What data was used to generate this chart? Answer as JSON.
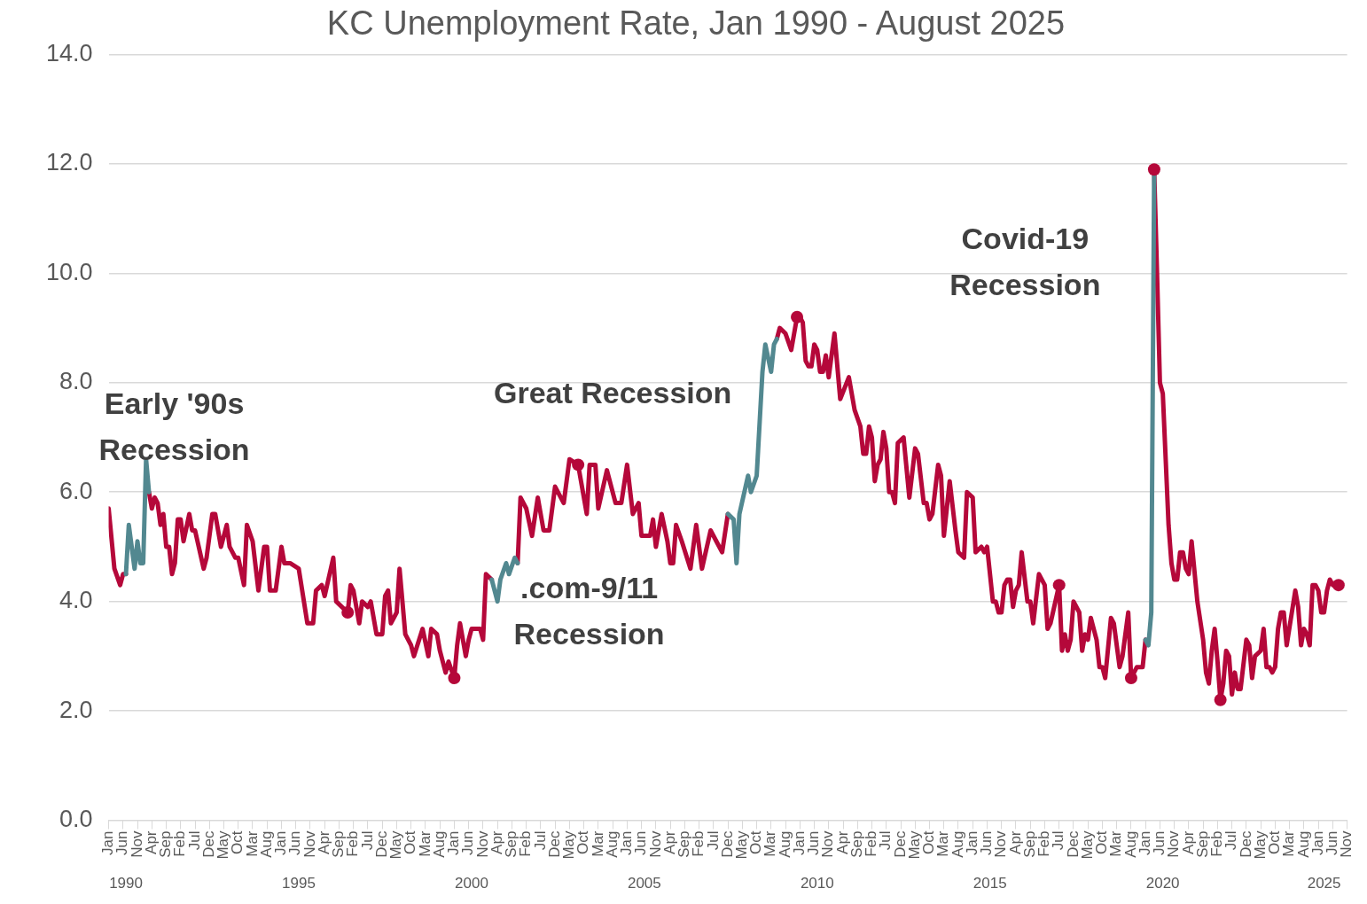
{
  "chart_data": {
    "type": "line",
    "title": "KC Unemployment Rate, Jan 1990 - August 2025",
    "xlim": [
      "1990-01",
      "2025-11"
    ],
    "xticks": [
      {
        "value": "1990-01",
        "label": "Jan"
      },
      {
        "value": "1990-06",
        "label": "Jun"
      },
      {
        "value": "1990-11",
        "label": "Nov"
      },
      {
        "value": "1991-04",
        "label": "Apr"
      },
      {
        "value": "1991-09",
        "label": "Sep"
      },
      {
        "value": "1992-02",
        "label": "Feb"
      },
      {
        "value": "1992-07",
        "label": "Jul"
      },
      {
        "value": "1992-12",
        "label": "Dec"
      },
      {
        "value": "1993-05",
        "label": "May"
      },
      {
        "value": "1993-10",
        "label": "Oct"
      },
      {
        "value": "1994-03",
        "label": "Mar"
      },
      {
        "value": "1994-08",
        "label": "Aug"
      },
      {
        "value": "1995-01",
        "label": "Jan"
      },
      {
        "value": "1995-06",
        "label": "Jun"
      },
      {
        "value": "1995-11",
        "label": "Nov"
      },
      {
        "value": "1996-04",
        "label": "Apr"
      },
      {
        "value": "1996-09",
        "label": "Sep"
      },
      {
        "value": "1997-02",
        "label": "Feb"
      },
      {
        "value": "1997-07",
        "label": "Jul"
      },
      {
        "value": "1997-12",
        "label": "Dec"
      },
      {
        "value": "1998-05",
        "label": "May"
      },
      {
        "value": "1998-10",
        "label": "Oct"
      },
      {
        "value": "1999-03",
        "label": "Mar"
      },
      {
        "value": "1999-08",
        "label": "Aug"
      },
      {
        "value": "2000-01",
        "label": "Jan"
      },
      {
        "value": "2000-06",
        "label": "Jun"
      },
      {
        "value": "2000-11",
        "label": "Nov"
      },
      {
        "value": "2001-04",
        "label": "Apr"
      },
      {
        "value": "2001-09",
        "label": "Sep"
      },
      {
        "value": "2002-02",
        "label": "Feb"
      },
      {
        "value": "2002-07",
        "label": "Jul"
      },
      {
        "value": "2002-12",
        "label": "Dec"
      },
      {
        "value": "2003-05",
        "label": "May"
      },
      {
        "value": "2003-10",
        "label": "Oct"
      },
      {
        "value": "2004-03",
        "label": "Mar"
      },
      {
        "value": "2004-08",
        "label": "Aug"
      },
      {
        "value": "2005-01",
        "label": "Jan"
      },
      {
        "value": "2005-06",
        "label": "Jun"
      },
      {
        "value": "2005-11",
        "label": "Nov"
      },
      {
        "value": "2006-04",
        "label": "Apr"
      },
      {
        "value": "2006-09",
        "label": "Sep"
      },
      {
        "value": "2007-02",
        "label": "Feb"
      },
      {
        "value": "2007-07",
        "label": "Jul"
      },
      {
        "value": "2007-12",
        "label": "Dec"
      },
      {
        "value": "2008-05",
        "label": "May"
      },
      {
        "value": "2008-10",
        "label": "Oct"
      },
      {
        "value": "2009-03",
        "label": "Mar"
      },
      {
        "value": "2009-08",
        "label": "Aug"
      },
      {
        "value": "2010-01",
        "label": "Jan"
      },
      {
        "value": "2010-06",
        "label": "Jun"
      },
      {
        "value": "2010-11",
        "label": "Nov"
      },
      {
        "value": "2011-04",
        "label": "Apr"
      },
      {
        "value": "2011-09",
        "label": "Sep"
      },
      {
        "value": "2012-02",
        "label": "Feb"
      },
      {
        "value": "2012-07",
        "label": "Jul"
      },
      {
        "value": "2012-12",
        "label": "Dec"
      },
      {
        "value": "2013-05",
        "label": "May"
      },
      {
        "value": "2013-10",
        "label": "Oct"
      },
      {
        "value": "2014-03",
        "label": "Mar"
      },
      {
        "value": "2014-08",
        "label": "Aug"
      },
      {
        "value": "2015-01",
        "label": "Jan"
      },
      {
        "value": "2015-06",
        "label": "Jun"
      },
      {
        "value": "2015-11",
        "label": "Nov"
      },
      {
        "value": "2016-04",
        "label": "Apr"
      },
      {
        "value": "2016-09",
        "label": "Sep"
      },
      {
        "value": "2017-02",
        "label": "Feb"
      },
      {
        "value": "2017-07",
        "label": "Jul"
      },
      {
        "value": "2017-12",
        "label": "Dec"
      },
      {
        "value": "2018-05",
        "label": "May"
      },
      {
        "value": "2018-10",
        "label": "Oct"
      },
      {
        "value": "2019-03",
        "label": "Mar"
      },
      {
        "value": "2019-08",
        "label": "Aug"
      },
      {
        "value": "2020-01",
        "label": "Jan"
      },
      {
        "value": "2020-06",
        "label": "Jun"
      },
      {
        "value": "2020-11",
        "label": "Nov"
      },
      {
        "value": "2021-04",
        "label": "Apr"
      },
      {
        "value": "2021-09",
        "label": "Sep"
      },
      {
        "value": "2022-02",
        "label": "Feb"
      },
      {
        "value": "2022-07",
        "label": "Jul"
      },
      {
        "value": "2022-12",
        "label": "Dec"
      },
      {
        "value": "2023-05",
        "label": "May"
      },
      {
        "value": "2023-10",
        "label": "Oct"
      },
      {
        "value": "2024-03",
        "label": "Mar"
      },
      {
        "value": "2024-08",
        "label": "Aug"
      },
      {
        "value": "2025-01",
        "label": "Jan"
      },
      {
        "value": "2025-06",
        "label": "Jun"
      },
      {
        "value": "2025-11",
        "label": "Nov"
      }
    ],
    "x2lim": [
      "1990-01",
      "2025-11"
    ],
    "x2ticks": [
      {
        "value": "1990-07",
        "label": "1990"
      },
      {
        "value": "1995-07",
        "label": "1995"
      },
      {
        "value": "2000-07",
        "label": "2000"
      },
      {
        "value": "2005-07",
        "label": "2005"
      },
      {
        "value": "2010-07",
        "label": "2010"
      },
      {
        "value": "2015-07",
        "label": "2015"
      },
      {
        "value": "2020-07",
        "label": "2020"
      },
      {
        "value": "2025-03",
        "label": "2025"
      }
    ],
    "ylim": [
      0,
      14
    ],
    "yticks": [
      {
        "value": 0,
        "label": "0.0"
      },
      {
        "value": 2,
        "label": "2.0"
      },
      {
        "value": 4,
        "label": "4.0"
      },
      {
        "value": 6,
        "label": "6.0"
      },
      {
        "value": 8,
        "label": "8.0"
      },
      {
        "value": 10,
        "label": "10.0"
      },
      {
        "value": 12,
        "label": "12.0"
      },
      {
        "value": 14,
        "label": "14.0"
      }
    ],
    "grid": "y",
    "legend": false,
    "line_style": "solid",
    "annotations": [
      "Early '90s\nRecession",
      "Great Recession",
      ".com-9/11\nRecession",
      "Covid-19\nRecession"
    ],
    "series": [
      {
        "color": "#b5083a",
        "marker": "none",
        "x": [
          "1990-01",
          "1990-03",
          "1990-05",
          "1990-06",
          "1990-07",
          "1990-10",
          "1991-03",
          "1991-04",
          "1991-05",
          "1991-06",
          "1991-07",
          "1991-08",
          "1991-09",
          "1991-10",
          "1991-11",
          "1991-12",
          "1992-01",
          "1992-02",
          "1992-03",
          "1992-05",
          "1992-06",
          "1992-07",
          "1992-10",
          "1992-11",
          "1993-01",
          "1993-02",
          "1993-04",
          "1993-06",
          "1993-07",
          "1993-09",
          "1993-10",
          "1993-12",
          "1994-01",
          "1994-03",
          "1994-05",
          "1994-07",
          "1994-08",
          "1994-09",
          "1994-11",
          "1995-01",
          "1995-02",
          "1995-04",
          "1995-07",
          "1995-10",
          "1995-12",
          "1996-01",
          "1996-03",
          "1996-04",
          "1996-07",
          "1996-08",
          "1996-10",
          "1996-12",
          "1997-01",
          "1997-02",
          "1997-04",
          "1997-05",
          "1997-07",
          "1997-08",
          "1997-10",
          "1997-12",
          "1998-01",
          "1998-02",
          "1998-03",
          "1998-05",
          "1998-06",
          "1998-08",
          "1998-10",
          "1998-11",
          "1999-02",
          "1999-04",
          "1999-05",
          "1999-07",
          "1999-08",
          "1999-10",
          "1999-11",
          "2000-01",
          "2000-02",
          "2000-03",
          "2000-05",
          "2000-06",
          "2000-07",
          "2000-10",
          "2000-11",
          "2000-12",
          "2001-02",
          "2001-06",
          "2001-11",
          "2001-12",
          "2002-02",
          "2002-04",
          "2002-06",
          "2002-08",
          "2002-10",
          "2002-12",
          "2003-03",
          "2003-05",
          "2003-08",
          "2003-11",
          "2003-12",
          "2004-02",
          "2004-03",
          "2004-06",
          "2004-09",
          "2004-11",
          "2005-01",
          "2005-03",
          "2005-05",
          "2005-06",
          "2005-09",
          "2005-10",
          "2005-11",
          "2006-01",
          "2006-03",
          "2006-04",
          "2006-05",
          "2006-06",
          "2006-08",
          "2006-11",
          "2007-01",
          "2007-03",
          "2007-06",
          "2007-08",
          "2007-10",
          "2007-12",
          "2008-06",
          "2009-05",
          "2009-06",
          "2009-08",
          "2009-10",
          "2009-12",
          "2010-01",
          "2010-02",
          "2010-03",
          "2010-04",
          "2010-05",
          "2010-06",
          "2010-07",
          "2010-08",
          "2010-09",
          "2010-10",
          "2010-11",
          "2011-01",
          "2011-02",
          "2011-03",
          "2011-06",
          "2011-08",
          "2011-10",
          "2011-11",
          "2011-12",
          "2012-01",
          "2012-02",
          "2012-03",
          "2012-04",
          "2012-05",
          "2012-06",
          "2012-07",
          "2012-08",
          "2012-09",
          "2012-10",
          "2012-11",
          "2013-01",
          "2013-03",
          "2013-05",
          "2013-06",
          "2013-08",
          "2013-09",
          "2013-10",
          "2013-11",
          "2014-01",
          "2014-02",
          "2014-03",
          "2014-04",
          "2014-05",
          "2014-07",
          "2014-08",
          "2014-10",
          "2014-11",
          "2015-01",
          "2015-02",
          "2015-04",
          "2015-05",
          "2015-06",
          "2015-08",
          "2015-09",
          "2015-10",
          "2015-11",
          "2015-12",
          "2016-01",
          "2016-02",
          "2016-03",
          "2016-04",
          "2016-05",
          "2016-06",
          "2016-08",
          "2016-09",
          "2016-10",
          "2016-12",
          "2017-02",
          "2017-03",
          "2017-04",
          "2017-07",
          "2017-08",
          "2017-09",
          "2017-10",
          "2017-11",
          "2017-12",
          "2018-02",
          "2018-03",
          "2018-04",
          "2018-05",
          "2018-06",
          "2018-08",
          "2018-09",
          "2018-10",
          "2018-11",
          "2019-01",
          "2019-02",
          "2019-04",
          "2019-05",
          "2019-07",
          "2019-08",
          "2019-10",
          "2019-12",
          "2020-01",
          "2020-02",
          "2020-04",
          "2020-05",
          "2020-06",
          "2020-07",
          "2020-09",
          "2020-10",
          "2020-11",
          "2020-12",
          "2021-01",
          "2021-02",
          "2021-03",
          "2021-04",
          "2021-05",
          "2021-07",
          "2021-09",
          "2021-10",
          "2021-11",
          "2021-12",
          "2022-01",
          "2022-02",
          "2022-03",
          "2022-04",
          "2022-05",
          "2022-06",
          "2022-07",
          "2022-08",
          "2022-09",
          "2022-10",
          "2022-12",
          "2023-01",
          "2023-02",
          "2023-03",
          "2023-05",
          "2023-06",
          "2023-07",
          "2023-08",
          "2023-09",
          "2023-10",
          "2023-11",
          "2023-12",
          "2024-01",
          "2024-02",
          "2024-05",
          "2024-06",
          "2024-07",
          "2024-08",
          "2024-09",
          "2024-10",
          "2024-11",
          "2024-12",
          "2025-01",
          "2025-02",
          "2025-03",
          "2025-04",
          "2025-05",
          "2025-06",
          "2025-08"
        ],
        "values": [
          5.7,
          4.6,
          4.3,
          4.5,
          4.5,
          null,
          6.0,
          5.7,
          5.9,
          5.8,
          5.4,
          5.6,
          5.0,
          5.0,
          4.5,
          4.7,
          5.5,
          5.5,
          5.1,
          5.6,
          5.3,
          5.3,
          4.6,
          4.8,
          5.6,
          5.6,
          5.0,
          5.4,
          5.0,
          4.8,
          4.8,
          4.3,
          5.4,
          5.1,
          4.2,
          5.0,
          5.0,
          4.2,
          4.2,
          5.0,
          4.7,
          4.7,
          4.6,
          3.6,
          3.6,
          4.2,
          4.3,
          4.1,
          4.8,
          4.0,
          3.9,
          3.8,
          4.3,
          4.2,
          3.6,
          4.0,
          3.9,
          4.0,
          3.4,
          3.4,
          4.1,
          4.2,
          3.6,
          3.8,
          4.6,
          3.4,
          3.2,
          3.0,
          3.5,
          3.0,
          3.5,
          3.4,
          3.1,
          2.7,
          2.9,
          2.6,
          3.2,
          3.6,
          3.0,
          3.3,
          3.5,
          3.5,
          3.3,
          4.5,
          4.4,
          null,
          4.7,
          5.9,
          5.7,
          5.2,
          5.9,
          5.3,
          5.3,
          6.1,
          5.8,
          6.6,
          6.5,
          5.6,
          6.5,
          6.5,
          5.7,
          6.4,
          5.8,
          5.8,
          6.5,
          5.6,
          5.8,
          5.2,
          5.2,
          5.5,
          5.0,
          5.6,
          5.1,
          4.7,
          4.7,
          5.4,
          5.1,
          4.6,
          5.4,
          4.6,
          5.3,
          5.1,
          4.9,
          5.6,
          null,
          8.8,
          9.0,
          8.9,
          8.6,
          9.2,
          9.2,
          9.1,
          8.4,
          8.3,
          8.3,
          8.7,
          8.6,
          8.2,
          8.2,
          8.5,
          8.1,
          8.9,
          8.3,
          7.7,
          8.1,
          7.5,
          7.2,
          6.7,
          6.7,
          7.2,
          7.0,
          6.2,
          6.5,
          6.6,
          7.1,
          6.8,
          6.0,
          6.0,
          5.8,
          6.9,
          7.0,
          5.9,
          6.8,
          6.7,
          5.8,
          5.8,
          5.5,
          5.6,
          6.5,
          6.3,
          5.2,
          5.7,
          6.2,
          5.3,
          4.9,
          4.8,
          6.0,
          5.9,
          4.9,
          5.0,
          4.9,
          5.0,
          4.0,
          4.0,
          3.8,
          3.8,
          4.3,
          4.4,
          4.4,
          3.9,
          4.2,
          4.3,
          4.9,
          4.0,
          4.0,
          3.6,
          4.5,
          4.3,
          3.5,
          3.6,
          4.3,
          3.1,
          3.4,
          3.1,
          3.3,
          4.0,
          3.8,
          3.1,
          3.4,
          3.3,
          3.7,
          3.3,
          2.8,
          2.8,
          2.6,
          3.7,
          3.6,
          2.8,
          3.0,
          3.8,
          2.6,
          2.8,
          2.8,
          3.3,
          null,
          11.9,
          10.0,
          8.0,
          7.8,
          5.4,
          4.7,
          4.4,
          4.4,
          4.9,
          4.9,
          4.6,
          4.5,
          5.1,
          4.0,
          3.3,
          2.7,
          2.5,
          3.1,
          3.5,
          2.9,
          2.2,
          2.5,
          3.1,
          3.0,
          2.3,
          2.7,
          2.4,
          2.4,
          3.3,
          3.2,
          2.6,
          3.0,
          3.1,
          3.5,
          2.8,
          2.8,
          2.7,
          2.8,
          3.5,
          3.8,
          3.8,
          3.2,
          4.2,
          3.9,
          3.2,
          3.5,
          3.4,
          3.2,
          4.3,
          4.3,
          4.2,
          3.8,
          3.8,
          4.2,
          4.4,
          4.3,
          4.3
        ]
      },
      {
        "color": "#528890",
        "marker": "none",
        "x": [
          "1990-07",
          "1990-08",
          "1990-10",
          "1990-11",
          "1990-12",
          "1991-01",
          "1991-02",
          "1991-03",
          "1996-01",
          "2001-02",
          "2001-04",
          "2001-05",
          "2001-07",
          "2001-08",
          "2001-10",
          "2001-11",
          "2004-01",
          "2007-12",
          "2008-02",
          "2008-03",
          "2008-04",
          "2008-07",
          "2008-08",
          "2008-10",
          "2008-12",
          "2009-01",
          "2009-03",
          "2009-04",
          "2009-05",
          "2015-01",
          "2020-01",
          "2020-02",
          "2020-03",
          "2020-04"
        ],
        "values": [
          4.5,
          5.4,
          4.6,
          5.1,
          4.7,
          4.7,
          6.6,
          6.0,
          null,
          4.4,
          4.0,
          4.4,
          4.7,
          4.5,
          4.8,
          4.7,
          null,
          5.6,
          5.5,
          4.7,
          5.6,
          6.3,
          6.0,
          6.3,
          8.2,
          8.7,
          8.2,
          8.7,
          8.8,
          null,
          3.3,
          3.2,
          3.8,
          11.9
        ]
      },
      {
        "type": "scatter",
        "color": "#b5083a",
        "marker": "circle",
        "x": [
          "1996-12",
          "2000-01",
          "2003-08",
          "2009-12",
          "2017-07",
          "2019-08",
          "2020-04",
          "2022-03",
          "2025-08"
        ],
        "values": [
          3.8,
          2.6,
          6.5,
          9.2,
          4.3,
          2.6,
          11.9,
          2.2,
          4.3
        ]
      }
    ]
  }
}
